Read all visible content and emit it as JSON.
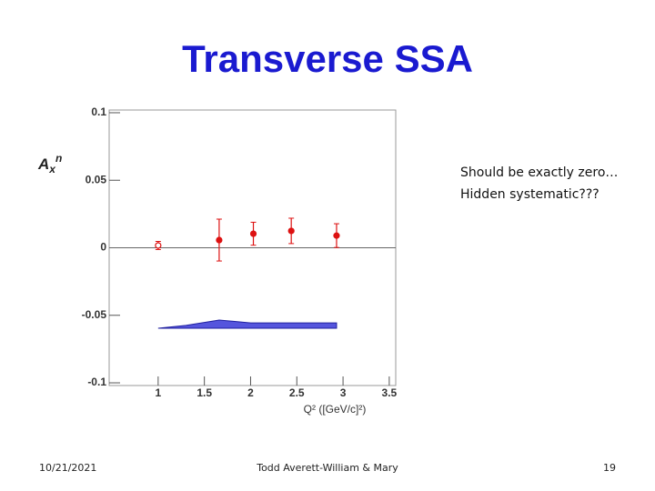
{
  "chart_data": {
    "type": "errorbar",
    "title": "Transverse SSA",
    "x_label": "Q² ([GeV/c]²)",
    "y_label": {
      "base": "A",
      "sub": "x",
      "sup": "n"
    },
    "annotation": [
      "Should be exactly zero…",
      "Hidden systematic???"
    ],
    "xlim": [
      0.47,
      3.57
    ],
    "xticks": [
      1,
      1.5,
      2,
      2.5,
      3,
      3.5
    ],
    "ylim": [
      -0.102,
      0.102
    ],
    "yticks": [
      -0.1,
      -0.05,
      0,
      0.05,
      0.1
    ],
    "reference_line": 0,
    "series": [
      {
        "marker": "open",
        "color": "#dd1111",
        "x": [
          1.0
        ],
        "values": [
          0.0017
        ],
        "errors": [
          0.003
        ]
      },
      {
        "marker": "filled",
        "color": "#dd1111",
        "x": [
          1.66,
          2.03,
          2.44,
          2.93
        ],
        "values": [
          0.0057,
          0.0104,
          0.0125,
          0.009
        ],
        "errors": [
          0.0155,
          0.0085,
          0.0094,
          0.0088
        ]
      }
    ],
    "band": {
      "color": "#5555dd",
      "x": [
        1.0,
        1.3,
        1.66,
        2.0,
        2.5,
        2.93
      ],
      "upper": [
        -0.0596,
        -0.0575,
        -0.0535,
        -0.0556,
        -0.0556,
        -0.0556
      ],
      "lower": [
        -0.0596,
        -0.0596,
        -0.0596,
        -0.0596,
        -0.0596,
        -0.0596
      ]
    }
  },
  "footer": {
    "date": "10/21/2021",
    "author": "Todd Averett-William & Mary",
    "page": "19"
  }
}
